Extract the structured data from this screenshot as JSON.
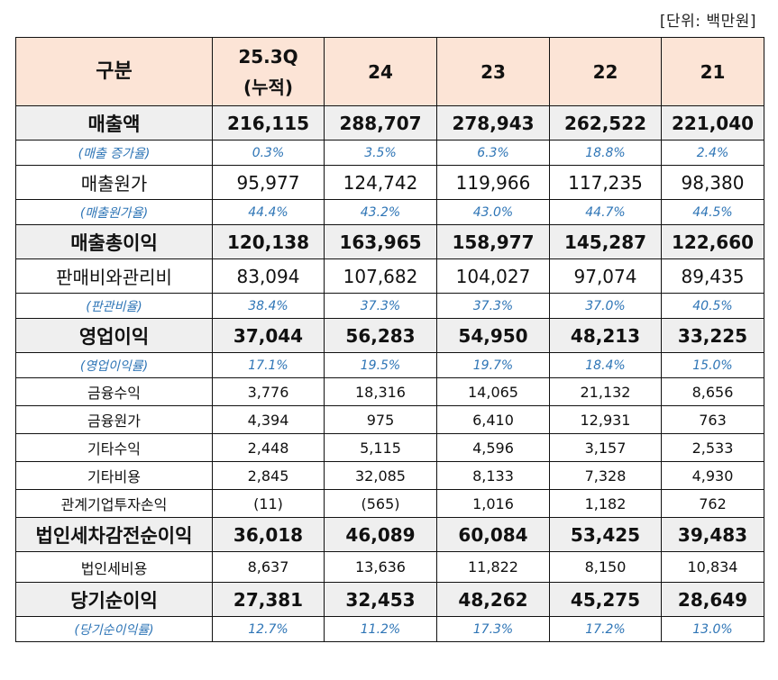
{
  "unit_label": "[단위:  백만원]",
  "table": {
    "header": {
      "label": "구분",
      "columns": [
        "25.3Q\n(누적)",
        "24",
        "23",
        "22",
        "21"
      ],
      "col0_line1": "25.3Q",
      "col0_line2": "(누적)"
    },
    "rows": [
      {
        "type": "major",
        "label": "매출액",
        "values": [
          "216,115",
          "288,707",
          "278,943",
          "262,522",
          "221,040"
        ]
      },
      {
        "type": "ratio",
        "label": "(매출  증가율)",
        "values": [
          "0.3%",
          "3.5%",
          "6.3%",
          "18.8%",
          "2.4%"
        ]
      },
      {
        "type": "normal",
        "label": "매출원가",
        "values": [
          "95,977",
          "124,742",
          "119,966",
          "117,235",
          "98,380"
        ]
      },
      {
        "type": "ratio",
        "label": "(매출원가율)",
        "values": [
          "44.4%",
          "43.2%",
          "43.0%",
          "44.7%",
          "44.5%"
        ]
      },
      {
        "type": "major",
        "label": "매출총이익",
        "values": [
          "120,138",
          "163,965",
          "158,977",
          "145,287",
          "122,660"
        ]
      },
      {
        "type": "normal",
        "label": "판매비와관리비",
        "values": [
          "83,094",
          "107,682",
          "104,027",
          "97,074",
          "89,435"
        ]
      },
      {
        "type": "ratio",
        "label": "(판관비율)",
        "values": [
          "38.4%",
          "37.3%",
          "37.3%",
          "37.0%",
          "40.5%"
        ]
      },
      {
        "type": "major",
        "label": "영업이익",
        "values": [
          "37,044",
          "56,283",
          "54,950",
          "48,213",
          "33,225"
        ]
      },
      {
        "type": "ratio",
        "label": "(영업이익률)",
        "values": [
          "17.1%",
          "19.5%",
          "19.7%",
          "18.4%",
          "15.0%"
        ]
      },
      {
        "type": "minor",
        "label": "금융수익",
        "values": [
          "3,776",
          "18,316",
          "14,065",
          "21,132",
          "8,656"
        ]
      },
      {
        "type": "minor",
        "label": "금융원가",
        "values": [
          "4,394",
          "975",
          "6,410",
          "12,931",
          "763"
        ]
      },
      {
        "type": "minor",
        "label": "기타수익",
        "values": [
          "2,448",
          "5,115",
          "4,596",
          "3,157",
          "2,533"
        ]
      },
      {
        "type": "minor",
        "label": "기타비용",
        "values": [
          "2,845",
          "32,085",
          "8,133",
          "7,328",
          "4,930"
        ]
      },
      {
        "type": "minor",
        "label": "관계기업투자손익",
        "values": [
          "(11)",
          "(565)",
          "1,016",
          "1,182",
          "762"
        ]
      },
      {
        "type": "major",
        "label": "법인세차감전순이익",
        "values": [
          "36,018",
          "46,089",
          "60,084",
          "53,425",
          "39,483"
        ]
      },
      {
        "type": "minor",
        "label": "법인세비용",
        "values": [
          "8,637",
          "13,636",
          "11,822",
          "8,150",
          "10,834"
        ]
      },
      {
        "type": "major",
        "label": "당기순이익",
        "values": [
          "27,381",
          "32,453",
          "48,262",
          "45,275",
          "28,649"
        ]
      },
      {
        "type": "ratio",
        "label": "(당기순이익률)",
        "values": [
          "12.7%",
          "11.2%",
          "17.3%",
          "17.2%",
          "13.0%"
        ]
      }
    ]
  },
  "colors": {
    "header_bg": "#fce4d6",
    "major_row_bg": "#efefef",
    "ratio_text": "#2e75b6",
    "border": "#111111"
  }
}
